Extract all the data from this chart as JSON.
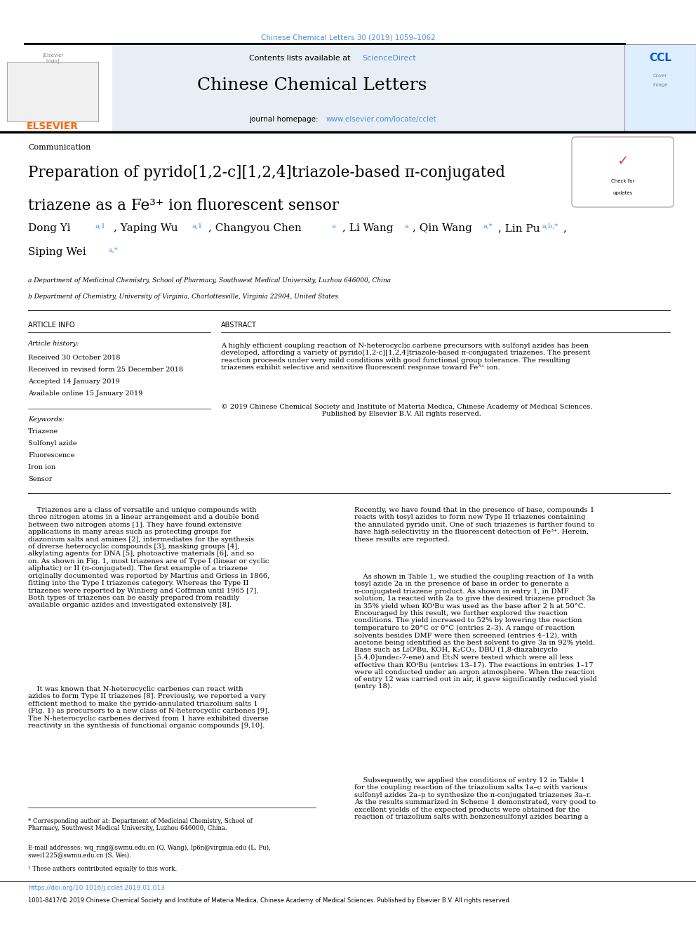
{
  "page_width": 9.92,
  "page_height": 13.23,
  "bg_color": "#ffffff",
  "header_citation": "Chinese Chemical Letters 30 (2019) 1059–1062",
  "header_citation_color": "#4a90d9",
  "journal_name": "Chinese Chemical Letters",
  "journal_banner_bg": "#e8eef5",
  "contents_text": "Contents lists available at ",
  "sciencedirect_text": "ScienceDirect",
  "sciencedirect_color": "#4a90d9",
  "journal_homepage_text": "journal homepage: ",
  "journal_url": "www.elsevier.com/locate/cclet",
  "journal_url_color": "#4a90d9",
  "elsevier_color": "#ff6600",
  "section_label": "Communication",
  "affil_a": "a Department of Medicinal Chemistry, School of Pharmacy, Southwest Medical University, Luzhou 646000, China",
  "affil_b": "b Department of Chemistry, University of Virginia, Charlottesville, Virginia 22904, United States",
  "article_info_header": "ARTICLE INFO",
  "abstract_header": "ABSTRACT",
  "article_history_label": "Article history:",
  "received": "Received 30 October 2018",
  "received_revised": "Received in revised form 25 December 2018",
  "accepted": "Accepted 14 January 2019",
  "available": "Available online 15 January 2019",
  "keywords_label": "Keywords:",
  "keywords": [
    "Triazene",
    "Sulfonyl azide",
    "Fluorescence",
    "Iron ion",
    "Sensor"
  ],
  "footnote_star": "* Corresponding author at: Department of Medicinal Chemistry, School of\nPharmacy, Southwest Medical University, Luzhou 646000, China.",
  "footnote_email": "E-mail addresses: wq_ring@swmu.edu.cn (Q. Wang), lp6n@virginia.edu (L. Pu),\nswei1225@swmu.edu.cn (S. Wei).",
  "footnote_1": "¹ These authors contributed equally to this work.",
  "doi_text": "https://doi.org/10.1016/j.cclet.2019.01.013",
  "issn_text": "1001-8417/© 2019 Chinese Chemical Society and Institute of Materia Medica, Chinese Academy of Medical Sciences. Published by Elsevier B.V. All rights reserved.",
  "link_color": "#4a90d9"
}
